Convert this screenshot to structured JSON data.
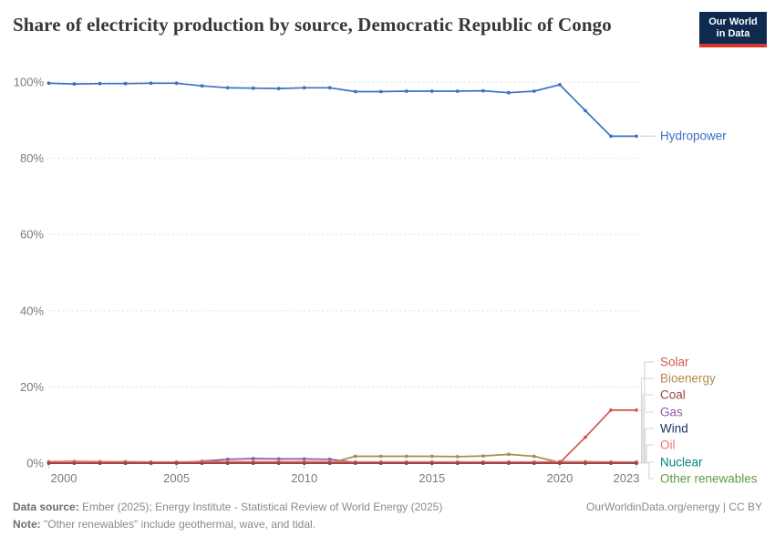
{
  "header": {
    "title": "Share of electricity production by source, Democratic Republic of Congo",
    "logo": {
      "line1": "Our World",
      "line2": "in Data"
    }
  },
  "footer": {
    "source_label": "Data source:",
    "source_text": " Ember (2025); Energy Institute - Statistical Review of World Energy (2025)",
    "note_label": "Note:",
    "note_text": " \"Other renewables\" include geothermal, wave, and tidal.",
    "right_text": "OurWorldinData.org/energy | CC BY"
  },
  "colors": {
    "grid": "#dedede",
    "axis_tick": "#c9c9c9",
    "axis_text": "#7b7b7b",
    "connector": "#d6d6d6"
  },
  "chart_data": {
    "type": "line",
    "title": "Share of electricity production by source, Democratic Republic of Congo",
    "unit": "%",
    "ylim": [
      0,
      100
    ],
    "yticks": [
      0,
      20,
      40,
      60,
      80,
      100
    ],
    "y_tick_labels": [
      "0%",
      "20%",
      "40%",
      "60%",
      "80%",
      "100%"
    ],
    "xticks": [
      2000,
      2005,
      2010,
      2015,
      2020,
      2023
    ],
    "x_tick_labels": [
      "2000",
      "2005",
      "2010",
      "2015",
      "2020",
      "2023"
    ],
    "grid": "dashed",
    "legend_position": "right",
    "x": [
      2000,
      2001,
      2002,
      2003,
      2004,
      2005,
      2006,
      2007,
      2008,
      2009,
      2010,
      2011,
      2012,
      2013,
      2014,
      2015,
      2016,
      2017,
      2018,
      2019,
      2020,
      2021,
      2022,
      2023
    ],
    "series": [
      {
        "name": "Hydropower",
        "color": "#3d6fc7",
        "values": [
          99.7,
          99.5,
          99.6,
          99.6,
          99.7,
          99.7,
          99.0,
          98.5,
          98.4,
          98.3,
          98.5,
          98.5,
          97.5,
          97.5,
          97.6,
          97.6,
          97.6,
          97.7,
          97.2,
          97.6,
          99.3,
          92.5,
          85.8,
          85.8
        ]
      },
      {
        "name": "Solar",
        "color": "#d2574b",
        "values": [
          0,
          0,
          0,
          0,
          0,
          0,
          0,
          0,
          0,
          0,
          0,
          0,
          0,
          0,
          0,
          0,
          0,
          0,
          0,
          0,
          0.1,
          6.8,
          13.9,
          13.9
        ]
      },
      {
        "name": "Bioenergy",
        "color": "#ae8a4d",
        "values": [
          0,
          0,
          0,
          0,
          0,
          0,
          0,
          0,
          0,
          0,
          0,
          0,
          1.8,
          1.8,
          1.8,
          1.8,
          1.7,
          1.9,
          2.3,
          1.8,
          0.2,
          0.2,
          0.2,
          0.2
        ]
      },
      {
        "name": "Coal",
        "color": "#9a4448",
        "values": [
          0,
          0,
          0,
          0,
          0,
          0,
          0,
          0,
          0,
          0,
          0,
          0,
          0,
          0,
          0,
          0,
          0,
          0,
          0,
          0,
          0,
          0,
          0,
          0
        ]
      },
      {
        "name": "Gas",
        "color": "#8e5aa8",
        "values": [
          0,
          0,
          0,
          0,
          0,
          0.1,
          0.5,
          1.0,
          1.2,
          1.1,
          1.1,
          1.0,
          0.2,
          0,
          0,
          0,
          0,
          0,
          0,
          0,
          0,
          0,
          0,
          0
        ]
      },
      {
        "name": "Wind",
        "color": "#1c3263",
        "values": [
          0,
          0,
          0,
          0,
          0,
          0,
          0,
          0,
          0,
          0,
          0,
          0,
          0,
          0,
          0,
          0,
          0,
          0,
          0,
          0,
          0,
          0,
          0,
          0
        ]
      },
      {
        "name": "Oil",
        "color": "#e5776e",
        "values": [
          0.4,
          0.5,
          0.4,
          0.4,
          0.3,
          0.3,
          0.4,
          0.4,
          0.4,
          0.4,
          0.4,
          0.4,
          0.3,
          0.3,
          0.3,
          0.3,
          0.3,
          0.3,
          0.3,
          0.3,
          0.4,
          0.4,
          0.3,
          0.3
        ]
      },
      {
        "name": "Nuclear",
        "color": "#00847e",
        "values": [
          0,
          0,
          0,
          0,
          0,
          0,
          0,
          0,
          0,
          0,
          0,
          0,
          0,
          0,
          0,
          0,
          0,
          0,
          0,
          0,
          0,
          0,
          0,
          0
        ]
      },
      {
        "name": "Other renewables",
        "color": "#5f9b47",
        "values": [
          0,
          0,
          0,
          0,
          0,
          0,
          0,
          0,
          0,
          0,
          0,
          0,
          0,
          0,
          0,
          0,
          0,
          0,
          0,
          0,
          0,
          0,
          0,
          0
        ]
      }
    ]
  }
}
